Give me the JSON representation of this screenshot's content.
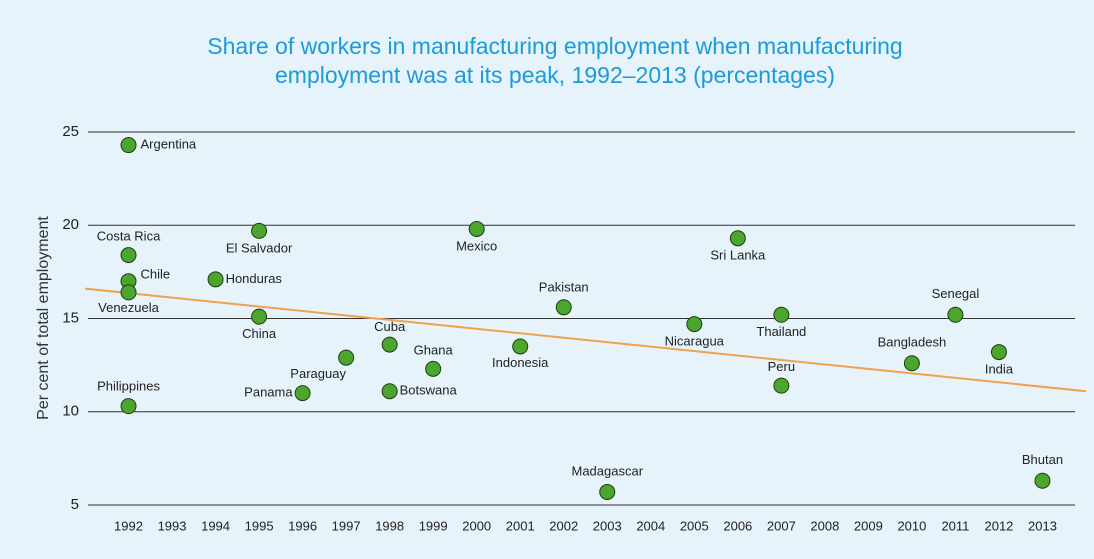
{
  "chart_data": {
    "type": "scatter",
    "title": [
      "Share of workers in manufacturing employment when manufacturing",
      "employment was at its peak, 1992–2013 (percentages)"
    ],
    "y_label": "Per cent of total employment",
    "x": [
      1992,
      1992,
      1992,
      1992,
      1992,
      1994,
      1995,
      1995,
      1996,
      1997,
      1998,
      1998,
      1999,
      2000,
      2001,
      2002,
      2003,
      2005,
      2006,
      2007,
      2007,
      2010,
      2011,
      2012,
      2013
    ],
    "values": [
      24.3,
      18.4,
      17.0,
      16.4,
      10.3,
      17.1,
      19.7,
      15.1,
      11.0,
      12.9,
      13.6,
      11.1,
      12.3,
      19.8,
      13.5,
      15.6,
      5.7,
      14.7,
      19.3,
      15.2,
      11.4,
      12.6,
      15.2,
      13.2,
      6.3
    ],
    "point_labels": [
      "Argentina",
      "Costa Rica",
      "Chile",
      "Venezuela",
      "Philippines",
      "Honduras",
      "El Salvador",
      "China",
      "Panama",
      "Paraguay",
      "Cuba",
      "Botswana",
      "Ghana",
      "Mexico",
      "Indonesia",
      "Pakistan",
      "Madagascar",
      "Nicaragua",
      "Sri Lanka",
      "Thailand",
      "Peru",
      "Bangladesh",
      "Senegal",
      "India",
      "Bhutan"
    ],
    "color": "#4ca62d",
    "trendline": {
      "color": "#f0a050",
      "x": [
        1991,
        2014
      ],
      "values": [
        16.6,
        11.1
      ]
    },
    "xlim": [
      1991,
      2014
    ],
    "xticks": [
      1992,
      1993,
      1994,
      1995,
      1996,
      1997,
      1998,
      1999,
      2000,
      2001,
      2002,
      2003,
      2004,
      2005,
      2006,
      2007,
      2008,
      2009,
      2010,
      2011,
      2012,
      2013
    ],
    "ylim": [
      5,
      25
    ],
    "yticks": [
      5,
      10,
      15,
      20,
      25
    ],
    "grid": true
  }
}
